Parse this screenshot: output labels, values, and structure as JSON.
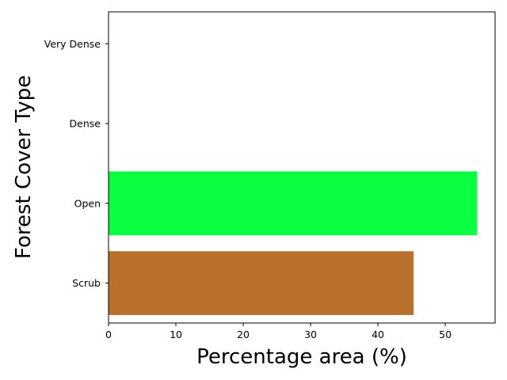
{
  "chart_data": {
    "type": "bar",
    "orientation": "horizontal",
    "categories": [
      "Scrub",
      "Open",
      "Dense",
      "Very Dense"
    ],
    "values": [
      45.3,
      54.7,
      0,
      0
    ],
    "colors": [
      "#b9702c",
      "#0aff41",
      "#1f77b4",
      "#1f77b4"
    ],
    "xlabel": "Percentage area (%)",
    "ylabel": "Forest Cover Type",
    "xlim": [
      0,
      57.4
    ],
    "xticks": [
      0,
      10,
      20,
      30,
      40,
      50
    ],
    "grid": false
  }
}
